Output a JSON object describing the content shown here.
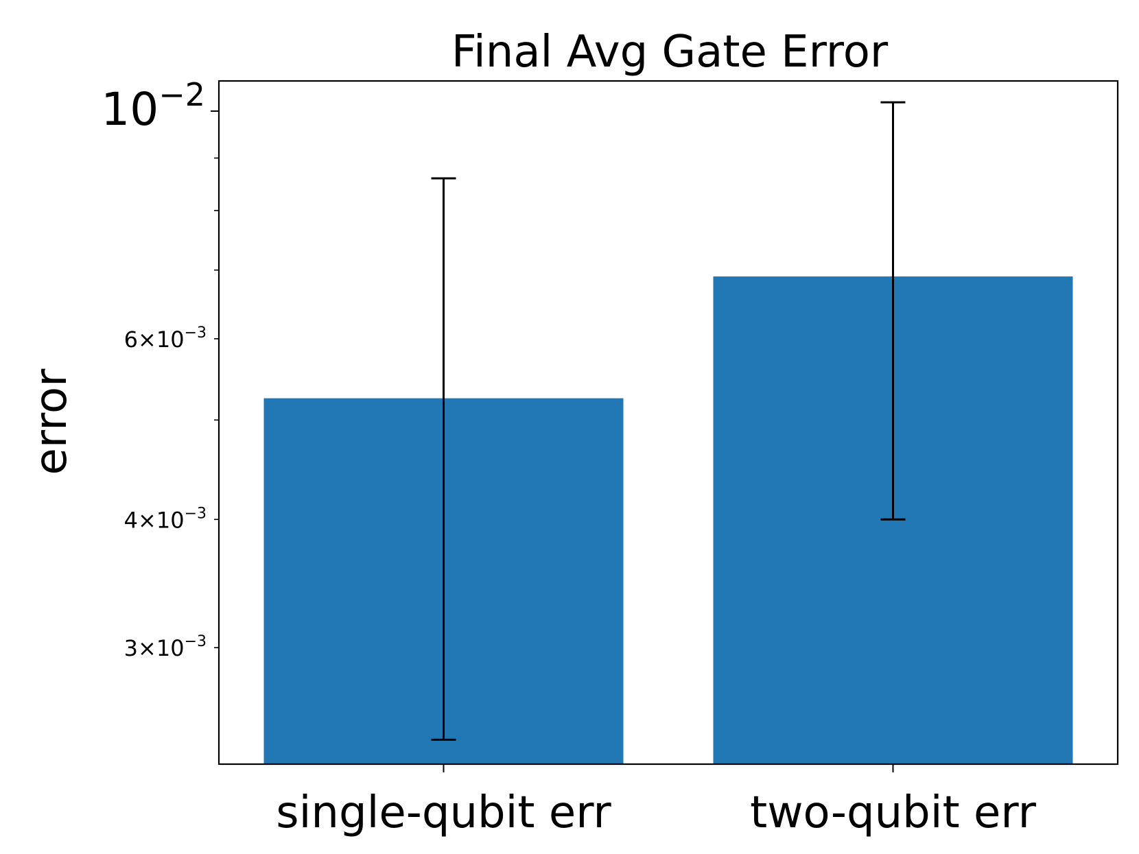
{
  "colors": {
    "bar": "#2178b4",
    "axis": "#000000",
    "errorbar": "#000000",
    "background": "#ffffff"
  },
  "chart_data": {
    "type": "bar",
    "title": "Final Avg Gate Error",
    "xlabel": "",
    "ylabel": "error",
    "yscale": "log",
    "ylim": [
      0.00231,
      0.0107
    ],
    "grid": false,
    "legend": "none",
    "categories": [
      "single-qubit err",
      "two-qubit err"
    ],
    "values": [
      0.00525,
      0.0069
    ],
    "error_low": [
      0.00244,
      0.004
    ],
    "error_high": [
      0.0086,
      0.0102
    ],
    "yticks": {
      "major": [
        {
          "value": 0.01,
          "base": "10",
          "exp": "−2",
          "mantissa": ""
        }
      ],
      "minor_labeled": [
        {
          "value": 0.006,
          "mantissa": "6×10",
          "exp": "−3"
        },
        {
          "value": 0.004,
          "mantissa": "4×10",
          "exp": "−3"
        },
        {
          "value": 0.003,
          "mantissa": "3×10",
          "exp": "−3"
        }
      ],
      "minor_unlabeled": [
        0.005,
        0.007,
        0.008,
        0.009
      ]
    }
  }
}
